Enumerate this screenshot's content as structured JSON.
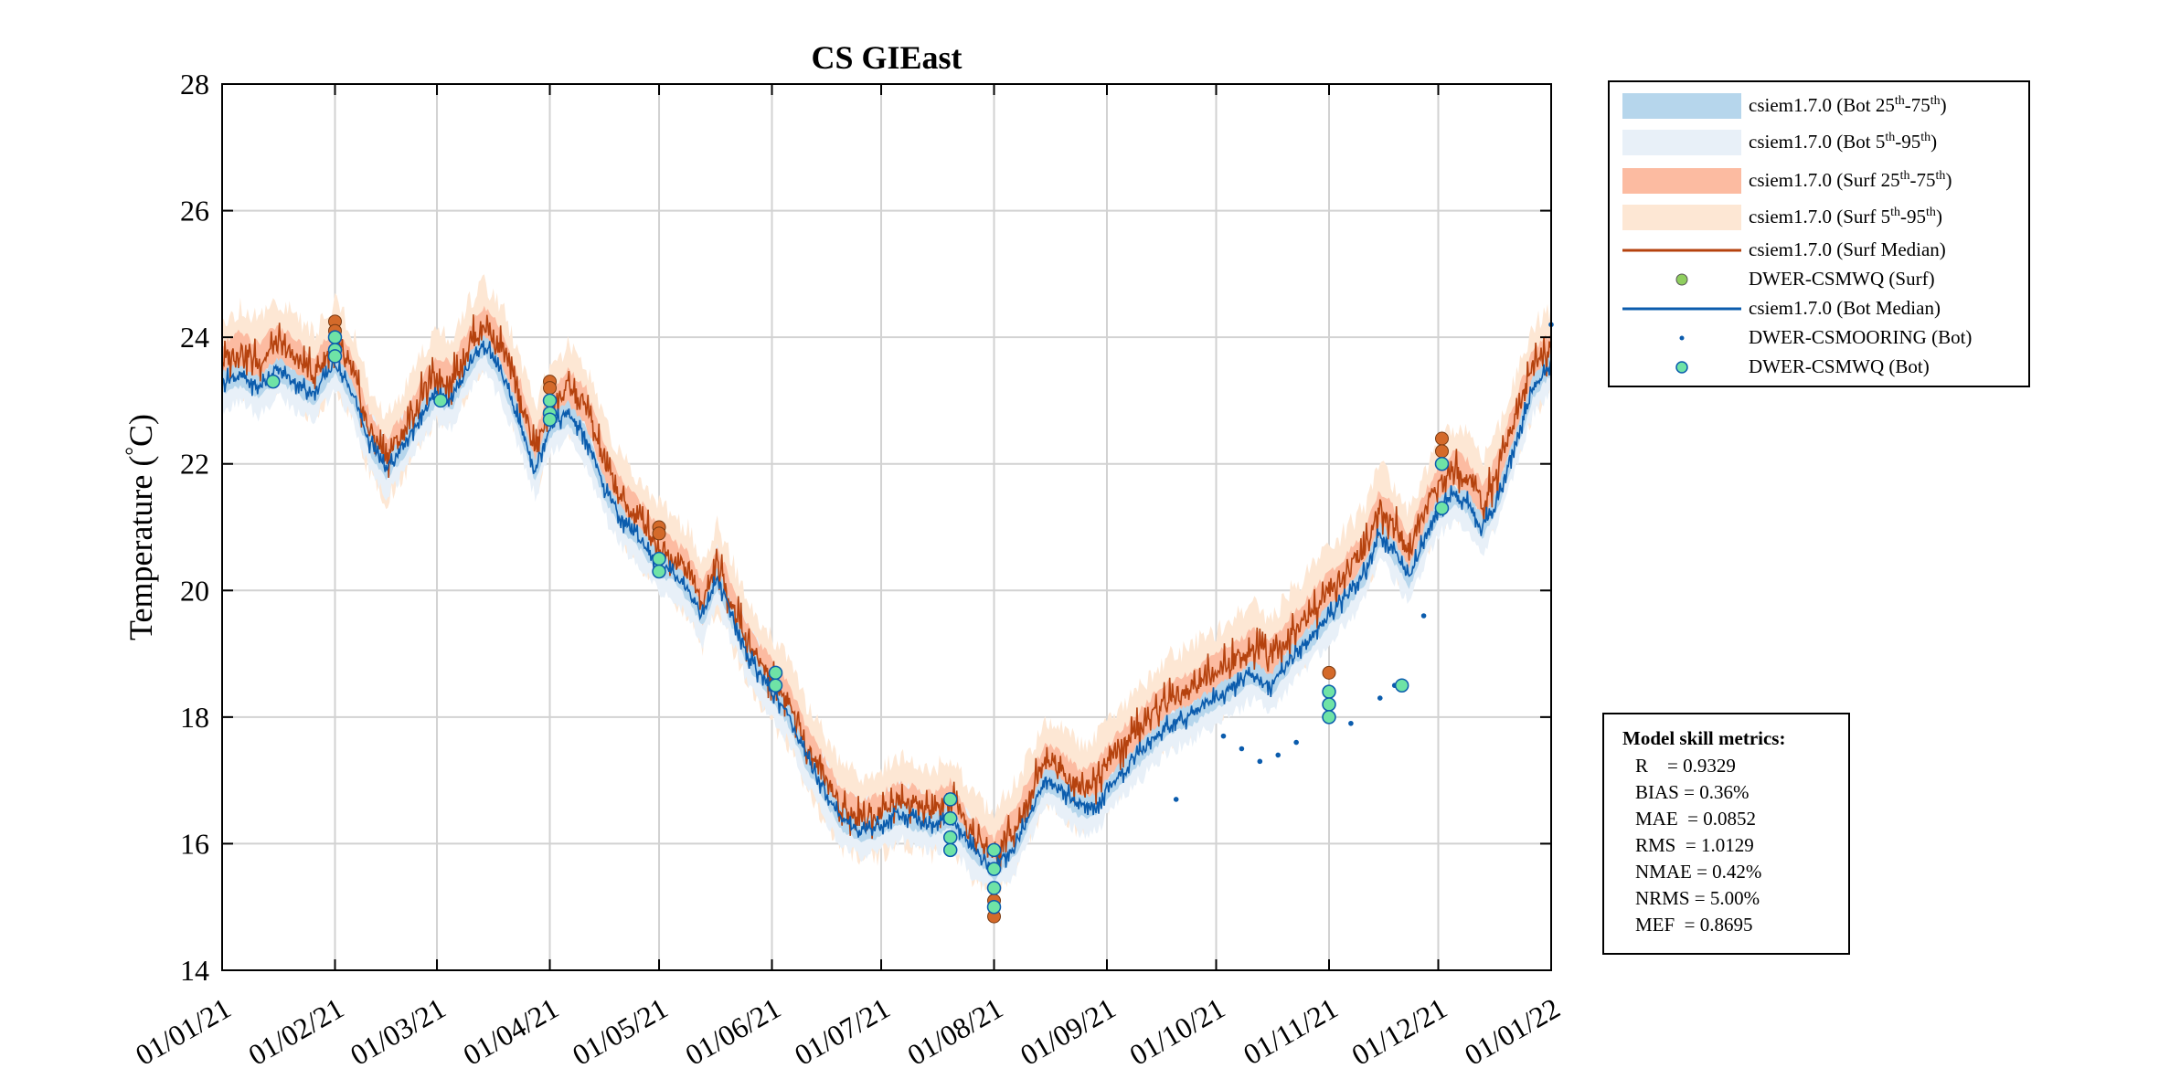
{
  "chart_data": {
    "type": "line",
    "title": "CS GIEast",
    "ylabel": "Temperature (°C)",
    "ylabel_text": "Temperature (",
    "ylabel_deg": "°",
    "ylabel_unit": "C)",
    "xlabel": "",
    "ylim": [
      14,
      28
    ],
    "yticks": [
      14,
      16,
      18,
      20,
      22,
      24,
      26,
      28
    ],
    "xlim": [
      0,
      365
    ],
    "xticks": [
      0,
      31,
      59,
      90,
      120,
      151,
      181,
      212,
      243,
      273,
      304,
      334,
      365
    ],
    "xtick_labels": [
      "01/01/21",
      "01/02/21",
      "01/03/21",
      "01/04/21",
      "01/05/21",
      "01/06/21",
      "01/07/21",
      "01/08/21",
      "01/09/21",
      "01/10/21",
      "01/11/21",
      "01/12/21",
      "01/01/22"
    ],
    "grid": true,
    "series": [
      {
        "name": "csiem1.7.0 (Bot Median)",
        "color": "#0b5cad",
        "x": [
          0,
          5,
          10,
          15,
          20,
          25,
          31,
          36,
          40,
          45,
          50,
          55,
          59,
          63,
          68,
          72,
          77,
          82,
          86,
          90,
          95,
          100,
          105,
          110,
          115,
          120,
          124,
          128,
          132,
          136,
          140,
          145,
          151,
          156,
          160,
          165,
          170,
          175,
          181,
          186,
          190,
          195,
          200,
          205,
          212,
          215,
          218,
          222,
          226,
          230,
          235,
          240,
          245,
          250,
          255,
          260,
          265,
          270,
          273,
          278,
          283,
          288,
          293,
          298,
          304,
          309,
          314,
          318,
          322,
          326,
          330,
          334,
          338,
          342,
          346,
          350,
          355,
          360,
          365
        ],
        "values": [
          23.3,
          23.4,
          23.2,
          23.5,
          23.3,
          23.1,
          23.6,
          23.1,
          22.4,
          21.9,
          22.3,
          22.8,
          23.1,
          23.0,
          23.6,
          23.9,
          23.4,
          22.6,
          21.9,
          22.6,
          22.8,
          22.4,
          21.6,
          21.1,
          20.8,
          20.4,
          20.3,
          20.0,
          19.6,
          20.2,
          19.6,
          18.9,
          18.4,
          18.0,
          17.4,
          16.9,
          16.4,
          16.2,
          16.3,
          16.5,
          16.4,
          16.3,
          16.4,
          16.0,
          15.6,
          15.8,
          16.0,
          16.5,
          17.0,
          16.9,
          16.6,
          16.6,
          17.0,
          17.3,
          17.6,
          17.9,
          18.0,
          18.2,
          18.3,
          18.5,
          18.7,
          18.5,
          18.9,
          19.2,
          19.6,
          19.9,
          20.3,
          20.9,
          20.6,
          20.2,
          20.8,
          21.3,
          21.5,
          21.4,
          21.0,
          21.4,
          22.3,
          23.2,
          23.6
        ]
      },
      {
        "name": "csiem1.7.0 (Surf Median)",
        "color": "#b5420e",
        "x": [
          0,
          5,
          10,
          15,
          20,
          25,
          31,
          36,
          40,
          45,
          50,
          55,
          59,
          63,
          68,
          72,
          77,
          82,
          86,
          90,
          95,
          100,
          105,
          110,
          115,
          120,
          124,
          128,
          132,
          136,
          140,
          145,
          151,
          156,
          160,
          165,
          170,
          175,
          181,
          186,
          190,
          195,
          200,
          205,
          212,
          215,
          218,
          222,
          226,
          230,
          235,
          240,
          245,
          250,
          255,
          260,
          265,
          270,
          273,
          278,
          283,
          288,
          293,
          298,
          304,
          309,
          314,
          318,
          322,
          326,
          330,
          334,
          338,
          342,
          346,
          350,
          355,
          360,
          365
        ],
        "values": [
          23.6,
          23.8,
          23.6,
          23.9,
          23.7,
          23.4,
          23.9,
          23.4,
          22.6,
          22.1,
          22.5,
          23.1,
          23.4,
          23.3,
          23.9,
          24.2,
          23.8,
          23.0,
          22.2,
          22.9,
          23.2,
          22.9,
          22.0,
          21.4,
          21.1,
          20.7,
          20.5,
          20.3,
          19.8,
          20.4,
          19.8,
          19.1,
          18.6,
          18.2,
          17.6,
          17.1,
          16.6,
          16.4,
          16.5,
          16.7,
          16.6,
          16.5,
          16.7,
          16.2,
          15.8,
          16.1,
          16.3,
          16.8,
          17.3,
          17.2,
          16.9,
          17.0,
          17.4,
          17.7,
          18.0,
          18.3,
          18.4,
          18.6,
          18.7,
          18.9,
          19.1,
          18.9,
          19.3,
          19.6,
          20.0,
          20.3,
          20.7,
          21.3,
          21.0,
          20.6,
          21.2,
          21.7,
          21.9,
          21.8,
          21.4,
          21.8,
          22.7,
          23.5,
          23.8
        ]
      }
    ],
    "bands": [
      {
        "name": "csiem1.7.0 (Surf 5th-95th)",
        "color": "#fde7d4",
        "spread": 0.7
      },
      {
        "name": "csiem1.7.0 (Bot 5th-95th)",
        "color": "#e8f0f8",
        "spread": 0.45
      },
      {
        "name": "csiem1.7.0 (Surf 25th-75th)",
        "color": "#fcbba1",
        "spread": 0.3
      },
      {
        "name": "csiem1.7.0 (Bot 25th-75th)",
        "color": "#b6d6ec",
        "spread": 0.18
      }
    ],
    "obs_surf": {
      "name": "DWER-CSMWQ (Surf)",
      "color": "#d46a2a",
      "points": [
        [
          31,
          24.25
        ],
        [
          31,
          24.1
        ],
        [
          90,
          23.3
        ],
        [
          90,
          23.2
        ],
        [
          120,
          21.0
        ],
        [
          120,
          20.9
        ],
        [
          212,
          14.85
        ],
        [
          212,
          15.1
        ],
        [
          304,
          18.7
        ],
        [
          335,
          22.4
        ],
        [
          335,
          22.2
        ]
      ]
    },
    "obs_bot": {
      "name": "DWER-CSMWQ (Bot)",
      "color": "#6fe3a6",
      "points": [
        [
          14,
          23.3
        ],
        [
          31,
          24.0
        ],
        [
          31,
          23.8
        ],
        [
          31,
          23.7
        ],
        [
          60,
          23.0
        ],
        [
          90,
          23.0
        ],
        [
          90,
          22.8
        ],
        [
          90,
          22.7
        ],
        [
          120,
          20.5
        ],
        [
          120,
          20.3
        ],
        [
          152,
          18.7
        ],
        [
          152,
          18.5
        ],
        [
          200,
          16.7
        ],
        [
          200,
          16.4
        ],
        [
          200,
          16.1
        ],
        [
          200,
          15.9
        ],
        [
          212,
          15.9
        ],
        [
          212,
          15.6
        ],
        [
          212,
          15.3
        ],
        [
          212,
          15.0
        ],
        [
          304,
          18.4
        ],
        [
          304,
          18.2
        ],
        [
          304,
          18.0
        ],
        [
          324,
          18.5
        ],
        [
          335,
          22.0
        ],
        [
          335,
          21.3
        ]
      ]
    },
    "mooring": {
      "name": "DWER-CSMOORING (Bot)",
      "color": "#0b5cad",
      "points": [
        [
          262,
          16.7
        ],
        [
          275,
          17.7
        ],
        [
          280,
          17.5
        ],
        [
          285,
          17.3
        ],
        [
          290,
          17.4
        ],
        [
          295,
          17.6
        ],
        [
          310,
          17.9
        ],
        [
          318,
          18.3
        ],
        [
          322,
          18.5
        ],
        [
          330,
          19.6
        ],
        [
          365,
          24.2
        ]
      ]
    }
  },
  "legend": {
    "items": [
      {
        "pre": "csiem1.7.0 (Bot 25",
        "sup1": "th",
        "mid": "-75",
        "sup2": "th",
        "post": ")"
      },
      {
        "pre": "csiem1.7.0 (Bot 5",
        "sup1": "th",
        "mid": "-95",
        "sup2": "th",
        "post": ")"
      },
      {
        "pre": "csiem1.7.0 (Surf 25",
        "sup1": "th",
        "mid": "-75",
        "sup2": "th",
        "post": ")"
      },
      {
        "pre": "csiem1.7.0 (Surf 5",
        "sup1": "th",
        "mid": "-95",
        "sup2": "th",
        "post": ")"
      },
      {
        "label": "csiem1.7.0 (Surf Median)"
      },
      {
        "label": "DWER-CSMWQ (Surf)"
      },
      {
        "label": "csiem1.7.0 (Bot Median)"
      },
      {
        "label": "DWER-CSMOORING (Bot)"
      },
      {
        "label": "DWER-CSMWQ (Bot)"
      }
    ]
  },
  "metrics": {
    "title": "Model skill metrics:",
    "rows": [
      "R    = 0.9329",
      "BIAS = 0.36%",
      "MAE  = 0.0852",
      "RMS  = 1.0129",
      "NMAE = 0.42%",
      "NRMS = 5.00%",
      "MEF  = 0.8695"
    ]
  }
}
